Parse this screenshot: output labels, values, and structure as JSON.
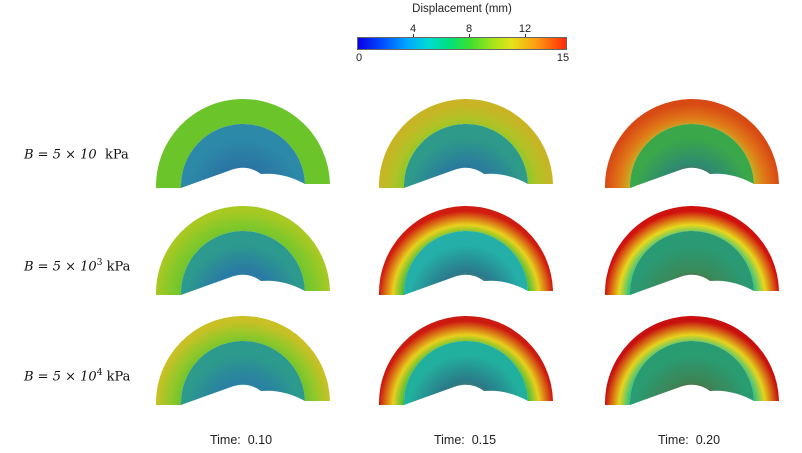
{
  "colorbar": {
    "title": "Displacement (mm)",
    "min_label": "0",
    "max_label": "15",
    "top_ticks": [
      "4",
      "8",
      "12"
    ],
    "min": 0,
    "max": 15
  },
  "rows": [
    {
      "label_prefix": "B = 5 × 10",
      "exponent": "",
      "unit": "kPa"
    },
    {
      "label_prefix": "B = 5 × 10",
      "exponent": "3",
      "unit": "kPa"
    },
    {
      "label_prefix": "B = 5 × 10",
      "exponent": "4",
      "unit": "kPa"
    }
  ],
  "columns": [
    {
      "time_text": "Time:  0.10"
    },
    {
      "time_text": "Time:  0.15"
    },
    {
      "time_text": "Time:  0.20"
    }
  ],
  "colors": {
    "blue": "#0a2ee0",
    "teal": "#14a8c8",
    "green": "#5cc828",
    "lime": "#9ed21e",
    "yellow": "#d8c020",
    "orange": "#ee8018",
    "red": "#d81c10"
  },
  "shells": [
    {
      "row": 0,
      "col": 0,
      "outer": "#6ac42a",
      "mid": "#6ac42a",
      "inner": "#6ac42a",
      "cavity_edge": "#2c8aa8",
      "cavity": "#2a76a4",
      "cavity_core": "#1f5fa0"
    },
    {
      "row": 0,
      "col": 1,
      "outer": "#c8b424",
      "mid": "#b2c226",
      "inner": "#8cc82a",
      "cavity_edge": "#2e9a8a",
      "cavity": "#2a7c9c",
      "cavity_core": "#2a6a9a"
    },
    {
      "row": 0,
      "col": 2,
      "outer": "#d84a14",
      "mid": "#e07818",
      "inner": "#c8b222",
      "cavity_edge": "#3aa84a",
      "cavity": "#2e8a70",
      "cavity_core": "#c01a14"
    },
    {
      "row": 1,
      "col": 0,
      "outer": "#a8c822",
      "mid": "#82c82a",
      "inner": "#6ec42e",
      "cavity_edge": "#2c9a8e",
      "cavity": "#2a7aa4",
      "cavity_core": "#2890b4"
    },
    {
      "row": 1,
      "col": 1,
      "outer": "#d01c10",
      "mid": "#e8d21c",
      "inner": "#3cbc3e",
      "cavity_edge": "#24b0a8",
      "cavity": "#2a7a8c",
      "cavity_core": "#9a8a24"
    },
    {
      "row": 1,
      "col": 2,
      "outer": "#d0120e",
      "mid": "#e8d81c",
      "inner": "#22c28c",
      "cavity_edge": "#2a9a74",
      "cavity": "#3a8a5a",
      "cavity_core": "#c4160e"
    },
    {
      "row": 2,
      "col": 0,
      "outer": "#c8c024",
      "mid": "#92c82a",
      "inner": "#6cc22e",
      "cavity_edge": "#2c9a8c",
      "cavity": "#2a80a2",
      "cavity_core": "#26a6b8"
    },
    {
      "row": 2,
      "col": 1,
      "outer": "#cc1a10",
      "mid": "#e8d01c",
      "inner": "#3cbc3e",
      "cavity_edge": "#22b09e",
      "cavity": "#2a7a88",
      "cavity_core": "#a08c22"
    },
    {
      "row": 2,
      "col": 2,
      "outer": "#c8100e",
      "mid": "#e6d41c",
      "inner": "#20c28e",
      "cavity_edge": "#2a9c72",
      "cavity": "#3c8456",
      "cavity_core": "#be140e"
    }
  ]
}
